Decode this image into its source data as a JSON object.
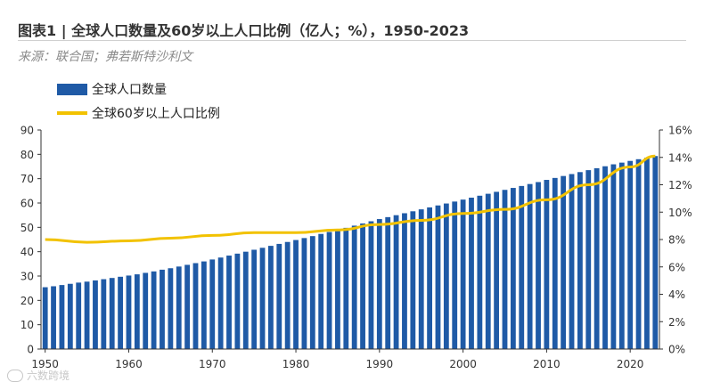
{
  "header": {
    "title": "图表1 | 全球人口数量及60岁以上人口比例（亿人；%），1950-2023",
    "source": "来源：联合国；弗若斯特沙利文"
  },
  "watermark": "六数跨境",
  "colors": {
    "bar": "#1f5aa6",
    "line": "#f2c200",
    "axis": "#333333"
  },
  "chart_data": {
    "type": "bar",
    "x_start": 1950,
    "x_end": 2023,
    "x_ticks": [
      1950,
      1960,
      1970,
      1980,
      1990,
      2000,
      2010,
      2020
    ],
    "y_left": {
      "min": 0,
      "max": 90,
      "ticks": [
        0,
        10,
        20,
        30,
        40,
        50,
        60,
        70,
        80,
        90
      ]
    },
    "y_right": {
      "min": 0,
      "max": 16,
      "ticks": [
        "0%",
        "2%",
        "4%",
        "6%",
        "8%",
        "10%",
        "12%",
        "14%",
        "16%"
      ]
    },
    "legend_position": "top-left",
    "series": [
      {
        "name": "全球人口数量",
        "type": "bar",
        "axis": "left",
        "values": [
          25.4,
          25.8,
          26.3,
          26.8,
          27.3,
          27.7,
          28.2,
          28.7,
          29.2,
          29.7,
          30.2,
          30.7,
          31.3,
          31.9,
          32.6,
          33.2,
          33.9,
          34.6,
          35.3,
          36.0,
          36.8,
          37.6,
          38.4,
          39.2,
          40.0,
          40.8,
          41.6,
          42.4,
          43.2,
          44.0,
          44.8,
          45.6,
          46.4,
          47.3,
          48.1,
          49.0,
          49.8,
          50.7,
          51.6,
          52.5,
          53.4,
          54.2,
          55.0,
          55.8,
          56.6,
          57.4,
          58.2,
          59.0,
          59.8,
          60.6,
          61.4,
          62.2,
          63.0,
          63.8,
          64.6,
          65.4,
          66.2,
          67.0,
          67.8,
          68.6,
          69.5,
          70.3,
          71.1,
          71.9,
          72.7,
          73.5,
          74.3,
          75.1,
          75.9,
          76.6,
          77.3,
          78.0,
          78.6,
          79.3
        ]
      },
      {
        "name": "全球60岁以上人口比例",
        "type": "line",
        "axis": "right",
        "x": [
          1950,
          1955,
          1960,
          1965,
          1970,
          1975,
          1980,
          1985,
          1990,
          1995,
          2000,
          2005,
          2010,
          2015,
          2020,
          2023
        ],
        "values": [
          8.0,
          7.8,
          7.9,
          8.1,
          8.3,
          8.5,
          8.5,
          8.7,
          9.1,
          9.4,
          9.9,
          10.2,
          10.9,
          12.0,
          13.3,
          14.1
        ]
      }
    ]
  }
}
